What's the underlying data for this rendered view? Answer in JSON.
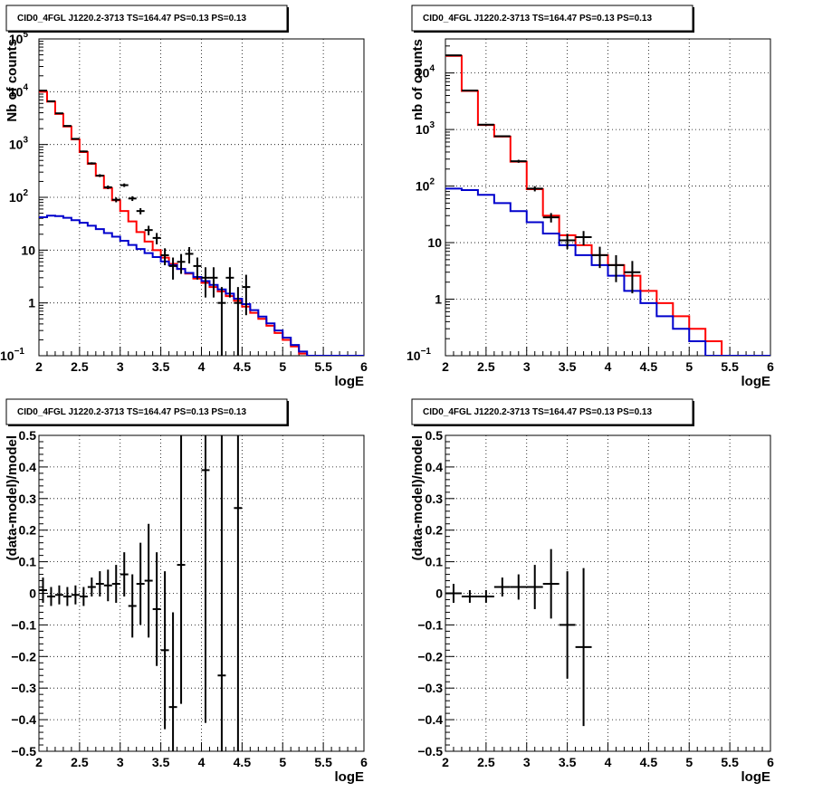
{
  "chart_data": [
    {
      "type": "line",
      "title": "CID0_4FGL J1220.2-3713 TS=164.47 PS=0.13 PS=0.13",
      "xlabel": "logE",
      "ylabel": "Nb of counts",
      "xlim": [
        2,
        6
      ],
      "ylim": [
        0.1,
        100000
      ],
      "yscale": "log",
      "grid": true,
      "xticks": [
        "2",
        "2.5",
        "3",
        "3.5",
        "4",
        "4.5",
        "5",
        "5.5",
        "6"
      ],
      "yticks": [
        {
          "v": 0.1,
          "label": "10",
          "sup": "−1"
        },
        {
          "v": 1,
          "label": "1",
          "sup": ""
        },
        {
          "v": 10,
          "label": "10",
          "sup": ""
        },
        {
          "v": 100,
          "label": "10",
          "sup": "2"
        },
        {
          "v": 1000,
          "label": "10",
          "sup": "3"
        },
        {
          "v": 10000,
          "label": "10",
          "sup": "4"
        },
        {
          "v": 100000,
          "label": "10",
          "sup": "5"
        }
      ],
      "bin_edges": [
        2.0,
        2.1,
        2.2,
        2.3,
        2.4,
        2.5,
        2.6,
        2.7,
        2.8,
        2.9,
        3.0,
        3.1,
        3.2,
        3.3,
        3.4,
        3.5,
        3.6,
        3.7,
        3.8,
        3.9,
        4.0,
        4.1,
        4.2,
        4.3,
        4.4,
        4.5,
        4.6,
        4.7,
        4.8,
        4.9,
        5.0,
        5.1,
        5.2,
        5.3,
        5.4,
        5.5,
        5.6,
        5.7,
        5.8,
        5.9,
        6.0
      ],
      "series": [
        {
          "color": "#ff0000",
          "style": "step",
          "values": [
            10000,
            6500,
            3800,
            2200,
            1250,
            720,
            430,
            255,
            150,
            88,
            55,
            35,
            22,
            14.5,
            10,
            7.2,
            5.5,
            4.4,
            3.6,
            2.9,
            2.4,
            2.0,
            1.65,
            1.35,
            1.1,
            0.85,
            0.65,
            0.5,
            0.37,
            0.27,
            0.2,
            0.15,
            0.11,
            0.1,
            0.1,
            0.1,
            0.1,
            0.1,
            0.1,
            0.1
          ]
        },
        {
          "color": "#0000cc",
          "style": "step",
          "values": [
            42,
            45,
            44,
            41,
            37,
            33,
            29,
            25,
            21,
            18,
            15,
            12.5,
            10.5,
            8.8,
            7.4,
            6.1,
            5.2,
            4.4,
            3.7,
            3.1,
            2.6,
            2.2,
            1.8,
            1.5,
            1.2,
            0.95,
            0.73,
            0.55,
            0.41,
            0.3,
            0.22,
            0.16,
            0.12,
            0.1,
            0.1,
            0.1,
            0.1,
            0.1,
            0.1,
            0.1
          ]
        },
        {
          "color": "#000000",
          "style": "points",
          "points": [
            {
              "x": 2.05,
              "y": 10500
            },
            {
              "x": 2.15,
              "y": 6600
            },
            {
              "x": 2.25,
              "y": 3900
            },
            {
              "x": 2.35,
              "y": 2250
            },
            {
              "x": 2.45,
              "y": 1280
            },
            {
              "x": 2.55,
              "y": 740
            },
            {
              "x": 2.65,
              "y": 440
            },
            {
              "x": 2.75,
              "y": 258
            },
            {
              "x": 2.85,
              "y": 155
            },
            {
              "x": 2.95,
              "y": 90
            },
            {
              "x": 3.05,
              "y": 170
            },
            {
              "x": 3.15,
              "y": 95
            },
            {
              "x": 3.25,
              "y": 55
            },
            {
              "x": 3.35,
              "y": 24
            },
            {
              "x": 3.45,
              "y": 17
            },
            {
              "x": 3.55,
              "y": 8
            },
            {
              "x": 3.65,
              "y": 5
            },
            {
              "x": 3.75,
              "y": 6
            },
            {
              "x": 3.85,
              "y": 8.5
            },
            {
              "x": 3.95,
              "y": 5
            },
            {
              "x": 4.05,
              "y": 3
            },
            {
              "x": 4.15,
              "y": 3
            },
            {
              "x": 4.25,
              "y": 1
            },
            {
              "x": 4.35,
              "y": 3
            },
            {
              "x": 4.45,
              "y": 1
            },
            {
              "x": 4.55,
              "y": 2
            }
          ]
        }
      ]
    },
    {
      "type": "line",
      "title": "CID0_4FGL J1220.2-3713 TS=164.47 PS=0.13 PS=0.13",
      "xlabel": "logE",
      "ylabel": "nb of counts",
      "xlim": [
        2,
        6
      ],
      "ylim": [
        0.1,
        40000
      ],
      "yscale": "log",
      "grid": true,
      "xticks": [
        "2",
        "2.5",
        "3",
        "3.5",
        "4",
        "4.5",
        "5",
        "5.5",
        "6"
      ],
      "yticks": [
        {
          "v": 0.1,
          "label": "10",
          "sup": "−1"
        },
        {
          "v": 1,
          "label": "1",
          "sup": ""
        },
        {
          "v": 10,
          "label": "10",
          "sup": ""
        },
        {
          "v": 100,
          "label": "10",
          "sup": "2"
        },
        {
          "v": 1000,
          "label": "10",
          "sup": "3"
        },
        {
          "v": 10000,
          "label": "10",
          "sup": "4"
        }
      ],
      "bin_edges": [
        2.0,
        2.2,
        2.4,
        2.6,
        2.8,
        3.0,
        3.2,
        3.4,
        3.6,
        3.8,
        4.0,
        4.2,
        4.4,
        4.6,
        4.8,
        5.0,
        5.2,
        5.4,
        5.6,
        5.8,
        6.0
      ],
      "series": [
        {
          "color": "#ff0000",
          "style": "step",
          "values": [
            20000,
            4800,
            1200,
            750,
            270,
            88,
            30,
            13.5,
            9,
            6,
            4,
            2.6,
            1.4,
            0.85,
            0.5,
            0.3,
            0.18,
            0.1,
            0.1,
            0.1
          ]
        },
        {
          "color": "#0000cc",
          "style": "step",
          "values": [
            90,
            85,
            70,
            50,
            36,
            23,
            14.5,
            9,
            6,
            4,
            2.6,
            1.4,
            0.85,
            0.5,
            0.3,
            0.18,
            0.1,
            0.1,
            0.1,
            0.1
          ]
        },
        {
          "color": "#000000",
          "style": "points",
          "points": [
            {
              "x": 2.1,
              "y": 20500
            },
            {
              "x": 2.3,
              "y": 4900
            },
            {
              "x": 2.5,
              "y": 1220
            },
            {
              "x": 2.7,
              "y": 760
            },
            {
              "x": 2.9,
              "y": 275
            },
            {
              "x": 3.1,
              "y": 90
            },
            {
              "x": 3.3,
              "y": 28
            },
            {
              "x": 3.5,
              "y": 11
            },
            {
              "x": 3.7,
              "y": 12.5
            },
            {
              "x": 3.9,
              "y": 6
            },
            {
              "x": 4.1,
              "y": 4
            },
            {
              "x": 4.3,
              "y": 3
            }
          ]
        }
      ]
    },
    {
      "type": "scatter",
      "title": "CID0_4FGL J1220.2-3713 TS=164.47 PS=0.13 PS=0.13",
      "xlabel": "logE",
      "ylabel": "(data-model)/model",
      "xlim": [
        2,
        6
      ],
      "ylim": [
        -0.5,
        0.5
      ],
      "grid": true,
      "xticks": [
        "2",
        "2.5",
        "3",
        "3.5",
        "4",
        "4.5",
        "5",
        "5.5",
        "6"
      ],
      "yticks": [
        "−0.5",
        "−0.4",
        "−0.3",
        "−0.2",
        "−0.1",
        "0",
        "0.1",
        "0.2",
        "0.3",
        "0.4",
        "0.5"
      ],
      "xerr": 0.05,
      "points": [
        {
          "x": 2.05,
          "y": 0.01,
          "err": 0.04
        },
        {
          "x": 2.15,
          "y": -0.01,
          "err": 0.03
        },
        {
          "x": 2.25,
          "y": -0.005,
          "err": 0.03
        },
        {
          "x": 2.35,
          "y": -0.01,
          "err": 0.03
        },
        {
          "x": 2.45,
          "y": -0.005,
          "err": 0.03
        },
        {
          "x": 2.55,
          "y": -0.01,
          "err": 0.03
        },
        {
          "x": 2.65,
          "y": 0.02,
          "err": 0.03
        },
        {
          "x": 2.75,
          "y": 0.03,
          "err": 0.04
        },
        {
          "x": 2.85,
          "y": 0.025,
          "err": 0.05
        },
        {
          "x": 2.95,
          "y": 0.03,
          "err": 0.06
        },
        {
          "x": 3.05,
          "y": 0.06,
          "err": 0.07
        },
        {
          "x": 3.15,
          "y": -0.04,
          "err": 0.1
        },
        {
          "x": 3.25,
          "y": 0.03,
          "err": 0.13
        },
        {
          "x": 3.35,
          "y": 0.04,
          "err": 0.18
        },
        {
          "x": 3.45,
          "y": -0.05,
          "err": 0.18
        },
        {
          "x": 3.55,
          "y": -0.18,
          "err": 0.25
        },
        {
          "x": 3.65,
          "y": -0.36,
          "err": 0.3
        },
        {
          "x": 3.75,
          "y": 0.09,
          "err": 0.44
        },
        {
          "x": 4.05,
          "y": 0.39,
          "err": 0.8
        },
        {
          "x": 4.25,
          "y": -0.26,
          "err": 1.0
        },
        {
          "x": 4.45,
          "y": 0.27,
          "err": 1.2
        }
      ]
    },
    {
      "type": "scatter",
      "title": "CID0_4FGL J1220.2-3713 TS=164.47 PS=0.13 PS=0.13",
      "xlabel": "logE",
      "ylabel": "(data-model)/model",
      "xlim": [
        2,
        6
      ],
      "ylim": [
        -0.5,
        0.5
      ],
      "grid": true,
      "xticks": [
        "2",
        "2.5",
        "3",
        "3.5",
        "4",
        "4.5",
        "5",
        "5.5",
        "6"
      ],
      "yticks": [
        "−0.5",
        "−0.4",
        "−0.3",
        "−0.2",
        "−0.1",
        "0",
        "0.1",
        "0.2",
        "0.3",
        "0.4",
        "0.5"
      ],
      "xerr": 0.1,
      "points": [
        {
          "x": 2.1,
          "y": 0.0,
          "err": 0.03
        },
        {
          "x": 2.3,
          "y": -0.01,
          "err": 0.02
        },
        {
          "x": 2.5,
          "y": -0.01,
          "err": 0.02
        },
        {
          "x": 2.7,
          "y": 0.02,
          "err": 0.03
        },
        {
          "x": 2.9,
          "y": 0.02,
          "err": 0.04
        },
        {
          "x": 3.1,
          "y": 0.02,
          "err": 0.07
        },
        {
          "x": 3.3,
          "y": 0.03,
          "err": 0.11
        },
        {
          "x": 3.5,
          "y": -0.1,
          "err": 0.17
        },
        {
          "x": 3.7,
          "y": -0.17,
          "err": 0.25
        }
      ]
    }
  ]
}
